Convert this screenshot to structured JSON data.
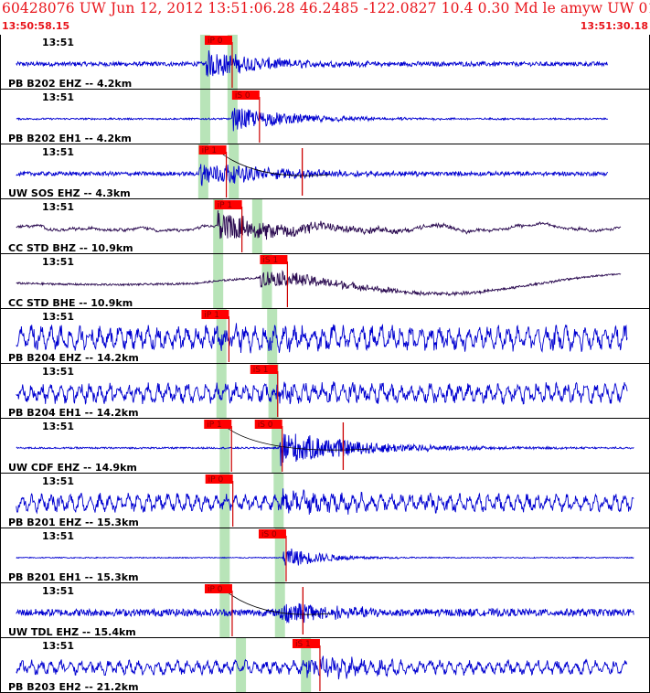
{
  "header": {
    "title": "60428076 UW Jun 12, 2012 13:51:06.28   46.2485 -122.0827 10.4 0.30 Md le amyw UW 01   3",
    "start_time": "13:50:58.15",
    "end_time": "13:51:30.18"
  },
  "colors": {
    "title": "#e8141b",
    "trace_blue": "#0000d0",
    "trace_purple": "#2a0a50",
    "pick_box": "#ff0000",
    "pick_line": "#cc0000",
    "shade": "#b8e4b8",
    "grid": "#000000"
  },
  "chart_data": {
    "type": "line",
    "title": "60428076 UW Jun 12, 2012 13:51:06.28   46.2485 -122.0827 10.4 0.30 Md le amyw UW 01   3",
    "x_range": [
      "13:50:58.15",
      "13:51:30.18"
    ],
    "x_range_seconds": [
      0,
      32.03
    ],
    "tick_label": "13:51",
    "grid": false,
    "traces": [
      {
        "name": "PB B202 EHZ -- 4.2km",
        "tick": "13:51",
        "color": "blue",
        "amp": 0.13,
        "end": 0.935,
        "noise": "hf",
        "picks": [
          {
            "label": "iP 0",
            "x": 0.315
          }
        ],
        "shades": [
          0.315,
          0.357
        ],
        "onset": 0.315,
        "burst": 0.55,
        "decay": 0.32
      },
      {
        "name": "PB B202 EH1 -- 4.2km",
        "tick": "13:51",
        "color": "blue",
        "amp": 0.05,
        "end": 0.935,
        "noise": "hf",
        "picks": [
          {
            "label": "iS 0",
            "x": 0.357
          }
        ],
        "shades": [
          0.315,
          0.357
        ],
        "onset": 0.357,
        "burst": 0.45,
        "decay": 0.35
      },
      {
        "name": "UW SOS EHZ -- 4.3km",
        "tick": "13:51",
        "color": "blue",
        "amp": 0.12,
        "end": 0.935,
        "noise": "hf",
        "picks": [
          {
            "label": "iP 1",
            "x": 0.306
          }
        ],
        "shades": [
          0.312,
          0.359
        ],
        "onset": 0.306,
        "burst": 0.5,
        "decay": 0.4,
        "spike": 0.465,
        "curve": true
      },
      {
        "name": "CC STD BHZ -- 10.9km",
        "tick": "13:51",
        "color": "purple",
        "amp": 0.18,
        "end": 0.955,
        "noise": "lp",
        "picks": [
          {
            "label": "iP 1",
            "x": 0.33
          }
        ],
        "shades": [
          0.335,
          0.395
        ],
        "onset": 0.335,
        "burst": 0.55,
        "decay": 0.45
      },
      {
        "name": "CC STD BHE -- 10.9km",
        "tick": "13:51",
        "color": "purple",
        "amp": 0.1,
        "end": 0.955,
        "noise": "drift",
        "picks": [
          {
            "label": "iS 1",
            "x": 0.4
          }
        ],
        "shades": [
          0.335,
          0.41
        ],
        "onset": 0.4,
        "burst": 0.35,
        "decay": 0.5
      },
      {
        "name": "PB B204 EHZ -- 14.2km",
        "tick": "13:51",
        "color": "blue",
        "amp": 0.55,
        "end": 0.965,
        "noise": "mf",
        "picks": [
          {
            "label": "iP 1",
            "x": 0.31
          }
        ],
        "shades": [
          0.34,
          0.418
        ],
        "onset": 0.34,
        "burst": 0.3,
        "decay": 0.3
      },
      {
        "name": "PB B204 EH1 -- 14.2km",
        "tick": "13:51",
        "color": "blue",
        "amp": 0.45,
        "end": 0.965,
        "noise": "mf",
        "picks": [
          {
            "label": "iS 1",
            "x": 0.385
          }
        ],
        "shades": [
          0.34,
          0.42
        ],
        "onset": 0.42,
        "burst": 0.3,
        "decay": 0.3
      },
      {
        "name": "UW CDF EHZ -- 14.9km",
        "tick": "13:51",
        "color": "blue",
        "amp": 0.05,
        "end": 0.975,
        "noise": "hf",
        "picks": [
          {
            "label": "iP 1",
            "x": 0.314
          },
          {
            "label": "iS 0",
            "x": 0.392
          }
        ],
        "shades": [
          0.345,
          0.425
        ],
        "onset": 0.43,
        "burst": 0.7,
        "decay": 0.4,
        "spike": 0.528,
        "curve": true
      },
      {
        "name": "PB B201 EHZ -- 15.3km",
        "tick": "13:51",
        "color": "blue",
        "amp": 0.4,
        "end": 0.975,
        "noise": "mf",
        "picks": [
          {
            "label": "iP 0",
            "x": 0.316
          }
        ],
        "shades": [
          0.345,
          0.428
        ],
        "onset": 0.435,
        "burst": 0.3,
        "decay": 0.3
      },
      {
        "name": "PB B201 EH1 -- 15.3km",
        "tick": "13:51",
        "color": "blue",
        "amp": 0.03,
        "end": 0.975,
        "noise": "hf",
        "picks": [
          {
            "label": "iS 0",
            "x": 0.398
          }
        ],
        "shades": [
          0.345,
          0.43
        ],
        "onset": 0.435,
        "burst": 0.45,
        "decay": 0.2
      },
      {
        "name": "UW TDL EHZ -- 15.4km",
        "tick": "13:51",
        "color": "blue",
        "amp": 0.22,
        "end": 0.975,
        "noise": "hf",
        "picks": [
          {
            "label": "iP 0",
            "x": 0.315
          }
        ],
        "shades": [
          0.345,
          0.43
        ],
        "onset": 0.43,
        "burst": 0.45,
        "decay": 0.3,
        "spike": 0.466,
        "curve": true
      },
      {
        "name": "PB B203 EH2 -- 21.2km",
        "tick": "13:51",
        "color": "blue",
        "amp": 0.32,
        "end": 0.965,
        "noise": "mf",
        "picks": [
          {
            "label": "iS 1",
            "x": 0.45
          }
        ],
        "shades": [
          0.37,
          0.47
        ],
        "onset": 0.47,
        "burst": 0.4,
        "decay": 0.3
      }
    ]
  }
}
